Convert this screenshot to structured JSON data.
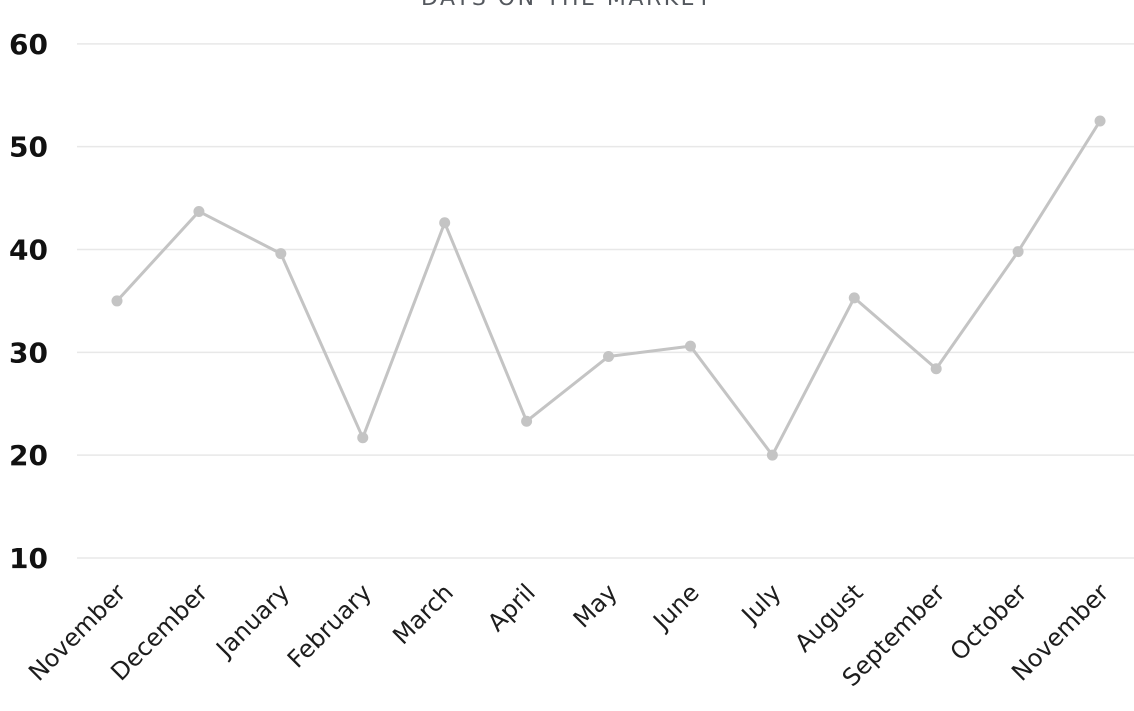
{
  "page": {
    "background": "#ffffff"
  },
  "chart_data": {
    "type": "line",
    "title": "DAYS ON THE MARKET",
    "categories": [
      "November",
      "December",
      "January",
      "February",
      "March",
      "April",
      "May",
      "June",
      "July",
      "August",
      "September",
      "October",
      "November"
    ],
    "values": [
      35,
      43.7,
      39.6,
      21.7,
      42.6,
      23.3,
      29.6,
      30.6,
      20,
      35.3,
      28.4,
      39.8,
      52.5
    ],
    "xlabel": "",
    "ylabel": "",
    "ylim": [
      10,
      60
    ],
    "yticks": [
      10,
      20,
      30,
      40,
      50,
      60
    ],
    "grid": "horizontal-only",
    "legend": "none",
    "x_label_rotation_deg": -45,
    "colors": {
      "line": "#c4c4c4",
      "marker": "#c4c4c4",
      "gridline": "#e8e8e8",
      "y_tick_label": "#111111",
      "x_tick_label": "#1d1d1d",
      "title": "#54585e"
    }
  }
}
